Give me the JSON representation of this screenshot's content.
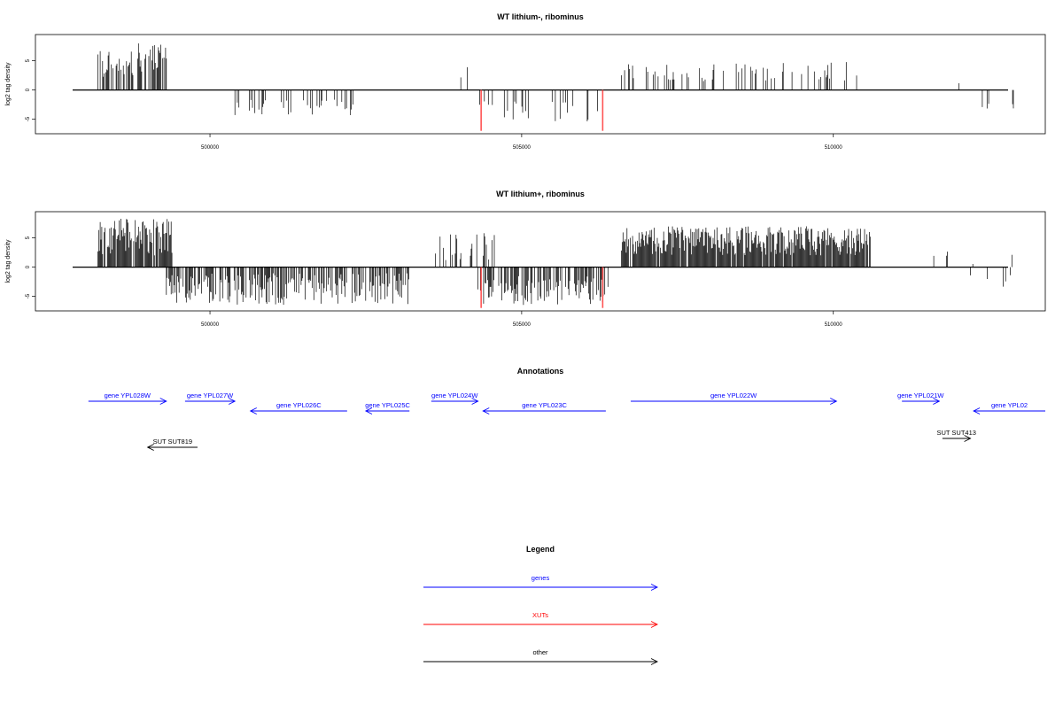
{
  "colors": {
    "gene": "#0000ff",
    "xut": "#ff0000",
    "other": "#000000",
    "signal": "#000000",
    "highlight": "#ff5555"
  },
  "chart_data": [
    {
      "type": "bar",
      "title": "WT lithium-, ribominus",
      "ylabel": "log2 tag density",
      "xlim": [
        497200,
        513400
      ],
      "ylim": [
        -7.5,
        9.5
      ],
      "xticks": [
        500000,
        505000,
        510000
      ],
      "yticks": [
        5,
        0,
        -5
      ],
      "segments": [
        {
          "range": [
            498200,
            499300
          ],
          "dir": 1,
          "min": 2.0,
          "max": 8.0,
          "density": 0.55
        },
        {
          "range": [
            503500,
            504300
          ],
          "dir": 1,
          "min": 0.5,
          "max": 4.0,
          "density": 0.07
        },
        {
          "range": [
            506600,
            510500
          ],
          "dir": 1,
          "min": 1.5,
          "max": 4.8,
          "density": 0.22
        },
        {
          "range": [
            512000,
            512300
          ],
          "dir": 1,
          "min": 1.0,
          "max": 2.8,
          "density": 0.02
        },
        {
          "range": [
            500400,
            502300
          ],
          "dir": -1,
          "min": 1.5,
          "max": 4.5,
          "density": 0.16
        },
        {
          "range": [
            504300,
            506300
          ],
          "dir": -1,
          "min": 1.5,
          "max": 5.5,
          "density": 0.16
        },
        {
          "range": [
            512300,
            512900
          ],
          "dir": -1,
          "min": 0.5,
          "max": 3.5,
          "density": 0.04
        }
      ],
      "highlights": [
        {
          "x": 504350,
          "y": -7.0
        },
        {
          "x": 506300,
          "y": -7.0
        }
      ]
    },
    {
      "type": "bar",
      "title": "WT lithium+, ribominus",
      "ylabel": "log2 tag density",
      "xlim": [
        497200,
        513400
      ],
      "ylim": [
        -7.5,
        9.5
      ],
      "xticks": [
        500000,
        505000,
        510000
      ],
      "yticks": [
        5,
        0,
        -5
      ],
      "segments": [
        {
          "range": [
            498200,
            499400
          ],
          "dir": 1,
          "min": 2.0,
          "max": 8.5,
          "density": 0.85
        },
        {
          "range": [
            503500,
            504600
          ],
          "dir": 1,
          "min": 1.0,
          "max": 6.0,
          "density": 0.25
        },
        {
          "range": [
            506600,
            510600
          ],
          "dir": 1,
          "min": 2.0,
          "max": 7.0,
          "density": 0.95
        },
        {
          "range": [
            510600,
            513000
          ],
          "dir": 1,
          "min": 0.5,
          "max": 3.0,
          "density": 0.04
        },
        {
          "range": [
            499300,
            503200
          ],
          "dir": -1,
          "min": 1.0,
          "max": 6.5,
          "density": 0.6
        },
        {
          "range": [
            504300,
            506400
          ],
          "dir": -1,
          "min": 1.5,
          "max": 6.5,
          "density": 0.55
        },
        {
          "range": [
            512200,
            513000
          ],
          "dir": -1,
          "min": 1.0,
          "max": 4.0,
          "density": 0.12
        }
      ],
      "highlights": [
        {
          "x": 504350,
          "y": -7.0
        },
        {
          "x": 506300,
          "y": -7.0
        }
      ]
    }
  ],
  "annotations": {
    "title": "Annotations",
    "xlim": [
      497200,
      513400
    ],
    "items": [
      {
        "label": "gene YPL028W",
        "start": 498050,
        "end": 499300,
        "strand": "+",
        "type": "gene",
        "row": 0
      },
      {
        "label": "gene YPL027W",
        "start": 499600,
        "end": 500400,
        "strand": "+",
        "type": "gene",
        "row": 0
      },
      {
        "label": "gene YPL026C",
        "start": 500650,
        "end": 502200,
        "strand": "-",
        "type": "gene",
        "row": 1
      },
      {
        "label": "gene YPL025C",
        "start": 502500,
        "end": 503200,
        "strand": "-",
        "type": "gene",
        "row": 1
      },
      {
        "label": "gene YPL024W",
        "start": 503550,
        "end": 504300,
        "strand": "+",
        "type": "gene",
        "row": 0
      },
      {
        "label": "gene YPL023C",
        "start": 504380,
        "end": 506350,
        "strand": "-",
        "type": "gene",
        "row": 1
      },
      {
        "label": "gene YPL022W",
        "start": 506750,
        "end": 510050,
        "strand": "+",
        "type": "gene",
        "row": 0
      },
      {
        "label": "gene YPL021W",
        "start": 511100,
        "end": 511700,
        "strand": "+",
        "type": "gene",
        "row": 0
      },
      {
        "label": "gene YPL02",
        "start": 512250,
        "end": 513400,
        "strand": "-",
        "type": "gene",
        "row": 1
      },
      {
        "label": "SUT SUT819",
        "start": 499000,
        "end": 499800,
        "strand": "-",
        "type": "other",
        "row": 3
      },
      {
        "label": "SUT SUT413",
        "start": 511750,
        "end": 512200,
        "strand": "+",
        "type": "other",
        "row": 2
      }
    ]
  },
  "legend": {
    "title": "Legend",
    "items": [
      {
        "label": "genes",
        "type": "gene"
      },
      {
        "label": "XUTs",
        "type": "xut"
      },
      {
        "label": "other",
        "type": "other"
      }
    ]
  }
}
